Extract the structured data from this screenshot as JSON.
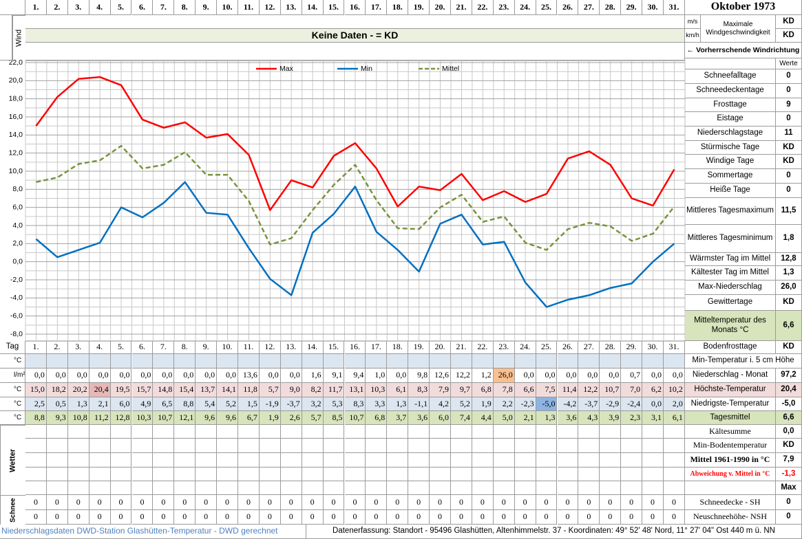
{
  "title": "Oktober 1973",
  "wind": {
    "label": "Wind",
    "units": [
      "m/s",
      "km/h"
    ],
    "max_label": "Maximale Windgeschwindigkeit",
    "values": [
      "KD",
      "KD"
    ],
    "banner": "Keine Daten -  = KD",
    "direction": "← Vorherrschende Windrichtung"
  },
  "chart_data": {
    "type": "line",
    "categories": [
      "1.",
      "2.",
      "3.",
      "4.",
      "5.",
      "6.",
      "7.",
      "8.",
      "9.",
      "10.",
      "11.",
      "12.",
      "13.",
      "14.",
      "15.",
      "16.",
      "17.",
      "18.",
      "19.",
      "20.",
      "21.",
      "22.",
      "23.",
      "24.",
      "25.",
      "26.",
      "27.",
      "28.",
      "29.",
      "30.",
      "31."
    ],
    "series": [
      {
        "name": "Max",
        "color": "#ff0000",
        "line_style": "solid",
        "values": [
          15.0,
          18.2,
          20.2,
          20.4,
          19.5,
          15.7,
          14.8,
          15.4,
          13.7,
          14.1,
          11.8,
          5.7,
          9.0,
          8.2,
          11.7,
          13.1,
          10.3,
          6.1,
          8.3,
          7.9,
          9.7,
          6.8,
          7.8,
          6.6,
          7.5,
          11.4,
          12.2,
          10.7,
          7.0,
          6.2,
          10.2
        ]
      },
      {
        "name": "Min",
        "color": "#0070c0",
        "line_style": "solid",
        "values": [
          2.5,
          0.5,
          1.3,
          2.1,
          6.0,
          4.9,
          6.5,
          8.8,
          5.4,
          5.2,
          1.5,
          -1.9,
          -3.7,
          3.2,
          5.3,
          8.3,
          3.3,
          1.3,
          -1.1,
          4.2,
          5.2,
          1.9,
          2.2,
          -2.3,
          -5.0,
          -4.2,
          -3.7,
          -2.9,
          -2.4,
          0.0,
          2.0
        ]
      },
      {
        "name": "Mittel",
        "color": "#77933c",
        "line_style": "dashed",
        "values": [
          8.8,
          9.3,
          10.8,
          11.2,
          12.8,
          10.3,
          10.7,
          12.1,
          9.6,
          9.6,
          6.7,
          1.9,
          2.6,
          5.7,
          8.5,
          10.7,
          6.8,
          3.7,
          3.6,
          6.0,
          7.4,
          4.4,
          5.0,
          2.1,
          1.3,
          3.6,
          4.3,
          3.9,
          2.3,
          3.1,
          6.1
        ]
      }
    ],
    "ylim": [
      -8,
      22
    ],
    "yticks": [
      {
        "value": -8,
        "label": "-8,0"
      },
      {
        "value": -6,
        "label": "-6,0"
      },
      {
        "value": -4,
        "label": "-4,0"
      },
      {
        "value": -2,
        "label": "-2,0"
      },
      {
        "value": 0,
        "label": "0,0"
      },
      {
        "value": 2,
        "label": "2,0"
      },
      {
        "value": 4,
        "label": "4,0"
      },
      {
        "value": 6,
        "label": "6,0"
      },
      {
        "value": 8,
        "label": "8,0"
      },
      {
        "value": 10,
        "label": "10,0"
      },
      {
        "value": 12,
        "label": "12,0"
      },
      {
        "value": 14,
        "label": "14,0"
      },
      {
        "value": 16,
        "label": "16,0"
      },
      {
        "value": 18,
        "label": "18,0"
      },
      {
        "value": 20,
        "label": "20,0"
      },
      {
        "value": 22,
        "label": "22,0"
      }
    ],
    "grid": true,
    "legend": "top"
  },
  "stats": {
    "header": "Werte",
    "rows": [
      {
        "label": "Schneefalltage",
        "value": "0"
      },
      {
        "label": "Schneedeckentage",
        "value": "0"
      },
      {
        "label": "Frosttage",
        "value": "9"
      },
      {
        "label": "Eistage",
        "value": "0"
      },
      {
        "label": "Niederschlagstage",
        "value": "11"
      },
      {
        "label": "Stürmische Tage",
        "value": "KD"
      },
      {
        "label": "Windige Tage",
        "value": "KD"
      },
      {
        "label": "Sommertage",
        "value": "0"
      },
      {
        "label": "Heiße Tage",
        "value": "0"
      },
      {
        "label": "Mittleres Tagesmaximum",
        "value": "11,5"
      },
      {
        "label": "Mittleres Tagesminimum",
        "value": "1,8"
      },
      {
        "label": "Wärmster Tag im Mittel",
        "value": "12,8"
      },
      {
        "label": "Kältester Tag im Mittel",
        "value": "1,3"
      },
      {
        "label": "Max-Niederschlag",
        "value": "26,0"
      },
      {
        "label": "Gewittertage",
        "value": "KD"
      },
      {
        "label": "Mitteltemperatur des Monats °C",
        "value": "6,6",
        "color": "#d7e4bc"
      }
    ]
  },
  "table": {
    "tag_label": "Tag",
    "rows": [
      {
        "unit": "°C",
        "color": "#dce6f1"
      },
      {
        "unit": "l/m²",
        "cells": [
          "0,0",
          "0,0",
          "0,0",
          "0,0",
          "0,0",
          "0,0",
          "0,0",
          "0,0",
          "0,0",
          "0,0",
          "13,6",
          "0,0",
          "0,0",
          "1,6",
          "9,1",
          "9,4",
          "1,0",
          "0,0",
          "9,8",
          "12,6",
          "12,2",
          "1,2",
          "26,0",
          "0,0",
          "0,0",
          "0,0",
          "0,0",
          "0,0",
          "0,7",
          "0,0",
          "0,0"
        ],
        "highlight": "max",
        "highlight_color": "#fabf8f"
      },
      {
        "unit": "°C",
        "color": "#f2dcdb",
        "cells": [
          "15,0",
          "18,2",
          "20,2",
          "20,4",
          "19,5",
          "15,7",
          "14,8",
          "15,4",
          "13,7",
          "14,1",
          "11,8",
          "5,7",
          "9,0",
          "8,2",
          "11,7",
          "13,1",
          "10,3",
          "6,1",
          "8,3",
          "7,9",
          "9,7",
          "6,8",
          "7,8",
          "6,6",
          "7,5",
          "11,4",
          "12,2",
          "10,7",
          "7,0",
          "6,2",
          "10,2"
        ],
        "highlight": "max",
        "highlight_color": "#e6b8b7"
      },
      {
        "unit": "°C",
        "color": "#dce6f1",
        "cells": [
          "2,5",
          "0,5",
          "1,3",
          "2,1",
          "6,0",
          "4,9",
          "6,5",
          "8,8",
          "5,4",
          "5,2",
          "1,5",
          "-1,9",
          "-3,7",
          "3,2",
          "5,3",
          "8,3",
          "3,3",
          "1,3",
          "-1,1",
          "4,2",
          "5,2",
          "1,9",
          "2,2",
          "-2,3",
          "-5,0",
          "-4,2",
          "-3,7",
          "-2,9",
          "-2,4",
          "0,0",
          "2,0"
        ],
        "highlight": "min",
        "highlight_color": "#8db4e2"
      },
      {
        "unit": "°C",
        "color": "#d8e4bc",
        "cells": [
          "8,8",
          "9,3",
          "10,8",
          "11,2",
          "12,8",
          "10,3",
          "10,7",
          "12,1",
          "9,6",
          "9,6",
          "6,7",
          "1,9",
          "2,6",
          "5,7",
          "8,5",
          "10,7",
          "6,8",
          "3,7",
          "3,6",
          "6,0",
          "7,4",
          "4,4",
          "5,0",
          "2,1",
          "1,3",
          "3,6",
          "4,3",
          "3,9",
          "2,3",
          "3,1",
          "6,1"
        ]
      }
    ],
    "weather_label": "Wetter",
    "snow_label": "Schnee",
    "snow_rows": [
      [
        "0",
        "0",
        "0",
        "0",
        "0",
        "0",
        "0",
        "0",
        "0",
        "0",
        "0",
        "0",
        "0",
        "0",
        "0",
        "0",
        "0",
        "0",
        "0",
        "0",
        "0",
        "0",
        "0",
        "0",
        "0",
        "0",
        "0",
        "0",
        "0",
        "0",
        "0"
      ],
      [
        "0",
        "0",
        "0",
        "0",
        "0",
        "0",
        "0",
        "0",
        "0",
        "0",
        "0",
        "0",
        "0",
        "0",
        "0",
        "0",
        "0",
        "0",
        "0",
        "0",
        "0",
        "0",
        "0",
        "0",
        "0",
        "0",
        "0",
        "0",
        "0",
        "0",
        "0"
      ]
    ]
  },
  "summary": [
    {
      "label": "Bodenfrosttage",
      "value": "KD"
    },
    {
      "label": "Min-Temperatur i. 5 cm Höhe"
    },
    {
      "label": "Niederschlag - Monat",
      "value": "97,2"
    },
    {
      "label": "Höchste-Temperatur",
      "value": "20,4",
      "color": "#f2dcdb"
    },
    {
      "label": "Niedrigste-Temperatur",
      "value": "-5,0"
    },
    {
      "label": "Tagesmittel",
      "value": "6,6",
      "color": "#d7e4bc"
    },
    {
      "label": "Kältesumme",
      "value": "0,0"
    },
    {
      "label": "Min-Bodentemperatur",
      "value": "KD"
    },
    {
      "label": "Mittel 1961-1990 in °C",
      "value": "7,9"
    },
    {
      "label": "Abweichung v. Mittel in °C",
      "value": "-1,3",
      "text_color": "#ff0000"
    },
    {
      "value": "Max"
    },
    {
      "label": "Schneedecke -  SH",
      "value": "0"
    },
    {
      "label": "Neuschneehöhe- NSH",
      "value": "0"
    }
  ],
  "footer": {
    "left": "Niederschlagsdaten DWD-Station Glashütten-Temperatur -  DWD gerechnet",
    "right": "Datenerfassung: Standort -  95496 Glashütten, Altenhimmelstr. 37 - Koordinaten: 49° 52' 48' Nord,  11° 27' 04\" Ost  440 m ü. NN"
  }
}
